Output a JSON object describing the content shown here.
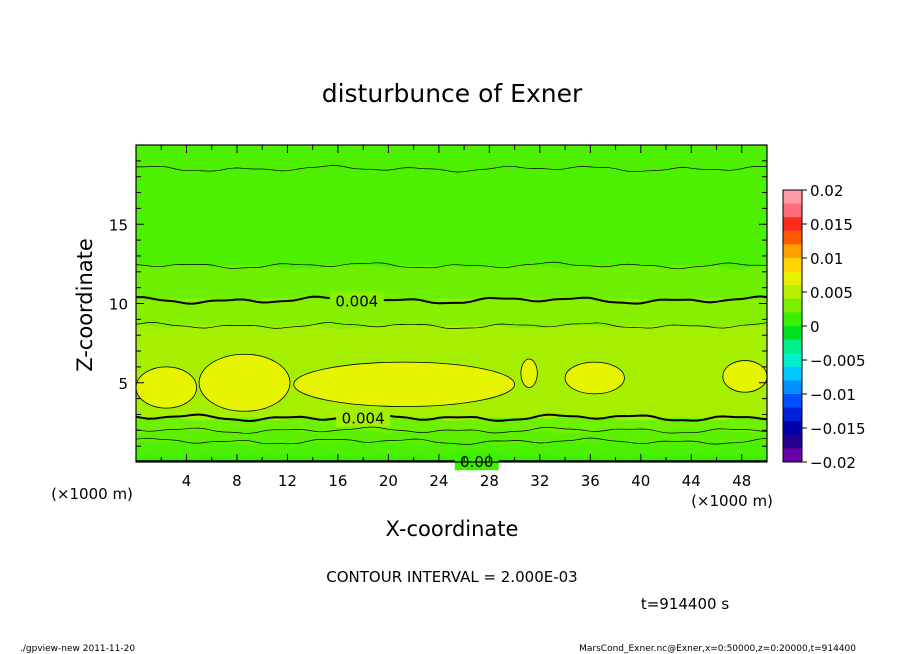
{
  "chart_data": {
    "type": "heatmap",
    "title": "disturbunce of Exner",
    "xlabel": "X-coordinate",
    "ylabel": "Z-coordinate",
    "x_unit": "(×1000 m)",
    "y_unit": "(×1000 m)",
    "xlim": [
      0,
      50
    ],
    "ylim": [
      0,
      20
    ],
    "x_ticks": [
      "4",
      "8",
      "12",
      "16",
      "20",
      "24",
      "28",
      "32",
      "36",
      "40",
      "44",
      "48"
    ],
    "y_ticks": [
      "5",
      "10",
      "15"
    ],
    "colorbar": {
      "range": [
        -0.02,
        0.02
      ],
      "labels": [
        "0.02",
        "0.015",
        "0.01",
        "0.005",
        "0",
        "−0.005",
        "−0.01",
        "−0.015",
        "−0.02"
      ],
      "colors": [
        "#ff9aa6",
        "#ff6b78",
        "#ff2a1e",
        "#ff5a00",
        "#ffa000",
        "#ffd400",
        "#e8f000",
        "#b4f000",
        "#78f000",
        "#3cf000",
        "#00e020",
        "#00f08c",
        "#00f0d0",
        "#00c8ff",
        "#0090ff",
        "#0050ff",
        "#0020d8",
        "#0000a8",
        "#280090",
        "#6a00a8"
      ]
    },
    "field_bands": [
      {
        "z": [
          0,
          0.5
        ],
        "value": 0.0005,
        "color": "#3cf000"
      },
      {
        "z": [
          0.5,
          1.3
        ],
        "value": 0.0015,
        "color": "#4cf000"
      },
      {
        "z": [
          1.3,
          2.0
        ],
        "value": 0.0025,
        "color": "#5cf000"
      },
      {
        "z": [
          2.0,
          2.8
        ],
        "value": 0.0035,
        "color": "#6ef000"
      },
      {
        "z": [
          2.8,
          8.6
        ],
        "value": 0.0048,
        "color": "#a4f000"
      },
      {
        "z": [
          8.6,
          10.3
        ],
        "value": 0.0042,
        "color": "#86f000"
      },
      {
        "z": [
          10.3,
          12.4
        ],
        "value": 0.0035,
        "color": "#6cf000"
      },
      {
        "z": [
          12.4,
          20.0
        ],
        "value": 0.002,
        "color": "#4cf000"
      }
    ],
    "contours": [
      {
        "level": "0.004",
        "z_mean": 10.2,
        "labeled": true,
        "label_x": 17.5
      },
      {
        "level": "0.004",
        "z_mean": 2.8,
        "labeled": true,
        "label_x": 18.0
      },
      {
        "level": "0.00",
        "z_mean": 0.05,
        "labeled": true,
        "label_x": 27.0
      }
    ],
    "contour_interval_text": "CONTOUR INTERVAL = 2.000E-03"
  },
  "time_label": "t=914400  s",
  "footer": {
    "left": "./gpview-new   2011-11-20",
    "right": "MarsCond_Exner.nc@Exner,x=0:50000,z=0:20000,t=914400"
  }
}
